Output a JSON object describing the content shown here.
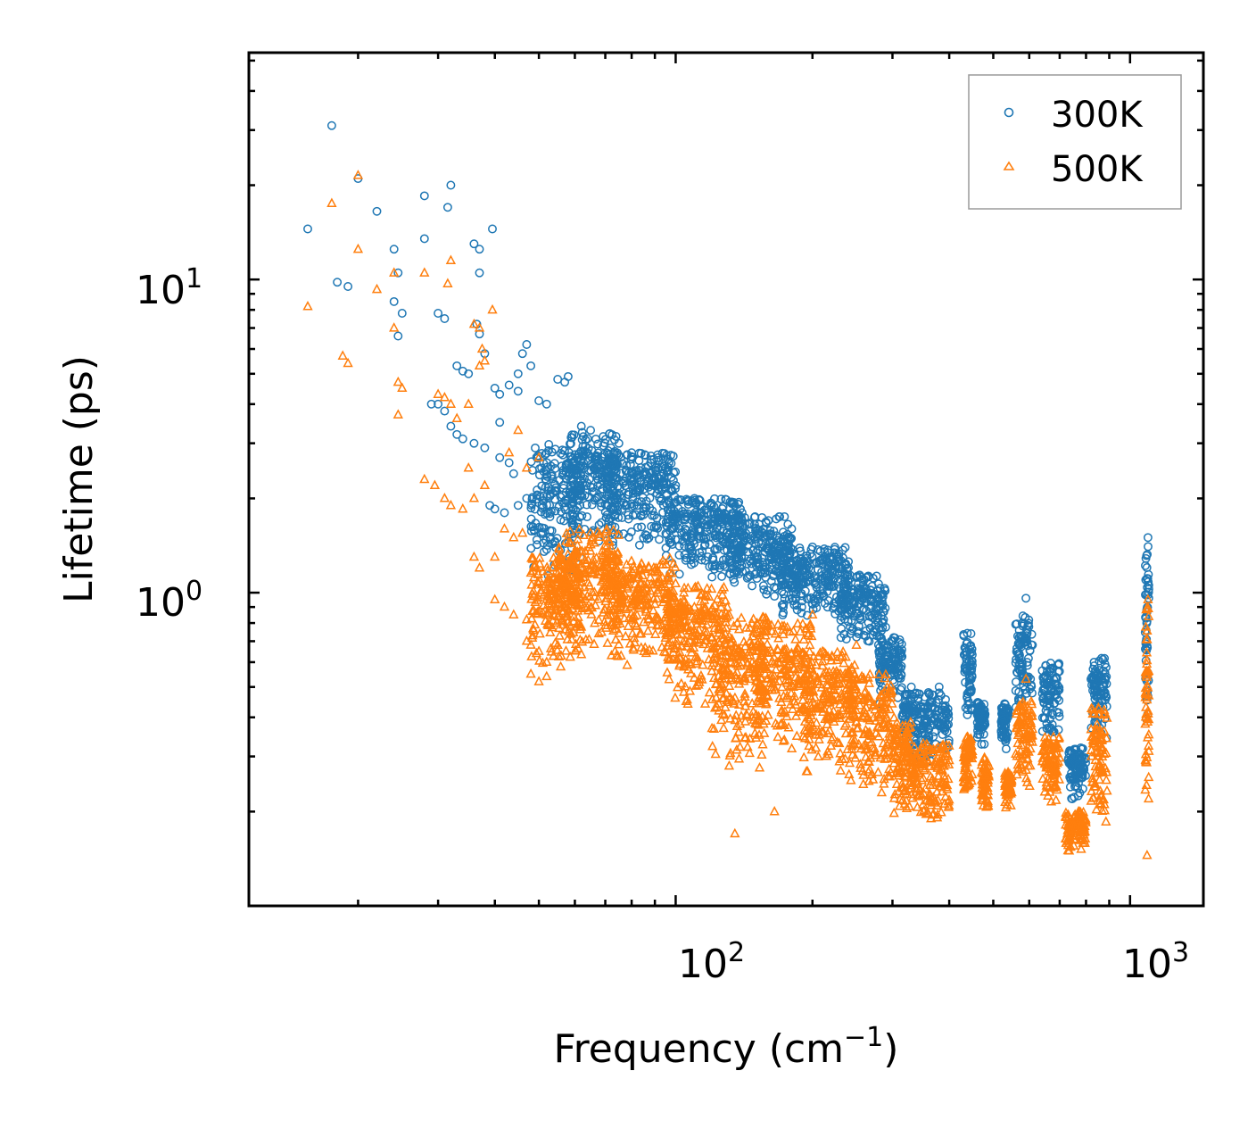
{
  "chart_data": {
    "type": "scatter",
    "xscale": "log",
    "yscale": "log",
    "xlim": [
      11.5,
      1450
    ],
    "ylim": [
      0.1,
      53
    ],
    "xlabel": "Frequency (cm",
    "xlabel_sup": "−1",
    "xlabel_end": ")",
    "ylabel": "Lifetime (ps)",
    "x_ticks": [
      {
        "value": 100,
        "base": "10",
        "exp": "2"
      },
      {
        "value": 1000,
        "base": "10",
        "exp": "3"
      }
    ],
    "y_ticks": [
      {
        "value": 1,
        "base": "10",
        "exp": "0"
      },
      {
        "value": 10,
        "base": "10",
        "exp": "1"
      }
    ],
    "legend": {
      "placement": "top-right"
    },
    "series": [
      {
        "name": "300K",
        "marker": "circle",
        "color": "#1f77b4",
        "points": [
          [
            15.5,
            14.5
          ],
          [
            17.5,
            31
          ],
          [
            18,
            9.8
          ],
          [
            19,
            9.5
          ],
          [
            20,
            21
          ],
          [
            22,
            16.5
          ],
          [
            24,
            12.5
          ],
          [
            24.5,
            10.5
          ],
          [
            24,
            8.5
          ],
          [
            25,
            7.8
          ],
          [
            24.5,
            6.6
          ],
          [
            28,
            18.5
          ],
          [
            28,
            13.5
          ],
          [
            30,
            7.8
          ],
          [
            31,
            7.5
          ],
          [
            31.5,
            17
          ],
          [
            32,
            20
          ],
          [
            33,
            5.3
          ],
          [
            34,
            5.1
          ],
          [
            35,
            5.0
          ],
          [
            36,
            13
          ],
          [
            37,
            12.5
          ],
          [
            37,
            10.5
          ],
          [
            36.5,
            7.2
          ],
          [
            37,
            6.7
          ],
          [
            38,
            5.8
          ],
          [
            39.5,
            14.5
          ],
          [
            40,
            4.5
          ],
          [
            41,
            4.3
          ],
          [
            41,
            3.5
          ],
          [
            43,
            4.6
          ],
          [
            45,
            4.4
          ],
          [
            45,
            5.0
          ],
          [
            46,
            5.8
          ],
          [
            47,
            6.2
          ],
          [
            48,
            5.3
          ],
          [
            50,
            4.1
          ],
          [
            52,
            4.0
          ],
          [
            55,
            4.8
          ],
          [
            57,
            4.7
          ],
          [
            58,
            4.9
          ],
          [
            29,
            4.0
          ],
          [
            30,
            4.0
          ],
          [
            31,
            3.8
          ],
          [
            32,
            3.4
          ],
          [
            33,
            3.2
          ],
          [
            34,
            3.1
          ],
          [
            36,
            3.0
          ],
          [
            38,
            2.9
          ],
          [
            41,
            2.7
          ],
          [
            43,
            2.6
          ],
          [
            44,
            2.4
          ],
          [
            39,
            1.9
          ],
          [
            40,
            1.85
          ],
          [
            42,
            1.8
          ],
          [
            45,
            1.9
          ],
          [
            47,
            2.0
          ],
          [
            62,
            3.4
          ],
          [
            65,
            3.3
          ],
          [
            72,
            2.9
          ],
          [
            75,
            3.0
          ],
          [
            80,
            2.8
          ],
          [
            88,
            2.6
          ],
          [
            95,
            2.5
          ],
          [
            100,
            2.2
          ],
          [
            110,
            2.0
          ],
          [
            120,
            1.9
          ],
          [
            140,
            1.8
          ],
          [
            160,
            1.7
          ],
          [
            180,
            1.6
          ],
          [
            200,
            1.4
          ],
          [
            220,
            1.3
          ],
          [
            240,
            1.2
          ],
          [
            260,
            1.1
          ],
          [
            285,
            0.8
          ],
          [
            300,
            0.7
          ],
          [
            330,
            0.5
          ],
          [
            360,
            0.48
          ],
          [
            380,
            0.5
          ],
          [
            590,
            0.96
          ],
          [
            1095,
            1.5
          ]
        ],
        "bands": [
          {
            "x": [
              48,
              62
            ],
            "y": [
              0.9,
              3.0
            ]
          },
          {
            "x": [
              58,
              75
            ],
            "y": [
              1.2,
              3.3
            ]
          },
          {
            "x": [
              70,
              100
            ],
            "y": [
              1.25,
              2.8
            ]
          },
          {
            "x": [
              95,
              140
            ],
            "y": [
              1.0,
              2.0
            ]
          },
          {
            "x": [
              130,
              180
            ],
            "y": [
              0.85,
              1.75
            ]
          },
          {
            "x": [
              170,
              240
            ],
            "y": [
              0.75,
              1.4
            ]
          },
          {
            "x": [
              230,
              290
            ],
            "y": [
              0.6,
              1.15
            ]
          },
          {
            "x": [
              280,
              315
            ],
            "y": [
              0.4,
              0.72
            ]
          },
          {
            "x": [
              315,
              400
            ],
            "y": [
              0.26,
              0.48
            ]
          },
          {
            "x": [
              430,
              450
            ],
            "y": [
              0.35,
              0.75
            ]
          },
          {
            "x": [
              460,
              480
            ],
            "y": [
              0.3,
              0.45
            ]
          },
          {
            "x": [
              520,
              540
            ],
            "y": [
              0.3,
              0.45
            ]
          },
          {
            "x": [
              560,
              610
            ],
            "y": [
              0.35,
              0.85
            ]
          },
          {
            "x": [
              640,
              700
            ],
            "y": [
              0.3,
              0.6
            ]
          },
          {
            "x": [
              730,
              800
            ],
            "y": [
              0.2,
              0.32
            ]
          },
          {
            "x": [
              820,
              890
            ],
            "y": [
              0.3,
              0.62
            ]
          },
          {
            "x": [
              1080,
              1100
            ],
            "y": [
              0.3,
              1.45
            ]
          }
        ]
      },
      {
        "name": "500K",
        "marker": "triangle",
        "color": "#ff7f0e",
        "points": [
          [
            15.5,
            8.2
          ],
          [
            17.5,
            17.5
          ],
          [
            18.5,
            5.7
          ],
          [
            19,
            5.4
          ],
          [
            20,
            21.5
          ],
          [
            20,
            12.5
          ],
          [
            22,
            9.3
          ],
          [
            24,
            10.5
          ],
          [
            24,
            7.0
          ],
          [
            24.5,
            4.7
          ],
          [
            25,
            4.5
          ],
          [
            24.5,
            3.7
          ],
          [
            28,
            10.5
          ],
          [
            31.5,
            9.7
          ],
          [
            32,
            11.5
          ],
          [
            30,
            4.3
          ],
          [
            31,
            4.2
          ],
          [
            32,
            4.0
          ],
          [
            33,
            3.6
          ],
          [
            35,
            4.0
          ],
          [
            36,
            7.2
          ],
          [
            37,
            7.0
          ],
          [
            37.5,
            6.0
          ],
          [
            39.5,
            8.0
          ],
          [
            38,
            5.5
          ],
          [
            37,
            5.3
          ],
          [
            28,
            2.3
          ],
          [
            29.5,
            2.2
          ],
          [
            31,
            2.0
          ],
          [
            32,
            1.9
          ],
          [
            34,
            1.85
          ],
          [
            36,
            2.0
          ],
          [
            35,
            2.5
          ],
          [
            38,
            2.2
          ],
          [
            36,
            1.3
          ],
          [
            37,
            1.2
          ],
          [
            40,
            1.3
          ],
          [
            42,
            1.6
          ],
          [
            44,
            1.5
          ],
          [
            46,
            1.55
          ],
          [
            40,
            0.95
          ],
          [
            42,
            0.9
          ],
          [
            44,
            0.85
          ],
          [
            47,
            0.82
          ],
          [
            47,
            0.7
          ],
          [
            50,
            0.65
          ],
          [
            52,
            0.6
          ],
          [
            55,
            0.68
          ],
          [
            48,
            0.55
          ],
          [
            50,
            0.52
          ],
          [
            52,
            0.54
          ],
          [
            43,
            2.8
          ],
          [
            45,
            3.3
          ],
          [
            47,
            2.5
          ],
          [
            50,
            2.7
          ],
          [
            200,
            0.85
          ],
          [
            250,
            0.68
          ],
          [
            590,
            0.53
          ],
          [
            1095,
            0.95
          ],
          [
            135,
            0.17
          ],
          [
            165,
            0.2
          ],
          [
            1090,
            0.145
          ]
        ],
        "bands": [
          {
            "x": [
              48,
              62
            ],
            "y": [
              0.5,
              1.3
            ]
          },
          {
            "x": [
              55,
              75
            ],
            "y": [
              0.55,
              1.6
            ]
          },
          {
            "x": [
              70,
              100
            ],
            "y": [
              0.5,
              1.3
            ]
          },
          {
            "x": [
              95,
              130
            ],
            "y": [
              0.38,
              1.05
            ]
          },
          {
            "x": [
              120,
              160
            ],
            "y": [
              0.22,
              0.85
            ]
          },
          {
            "x": [
              150,
              200
            ],
            "y": [
              0.25,
              0.8
            ]
          },
          {
            "x": [
              190,
              250
            ],
            "y": [
              0.22,
              0.65
            ]
          },
          {
            "x": [
              240,
              300
            ],
            "y": [
              0.2,
              0.55
            ]
          },
          {
            "x": [
              300,
              330
            ],
            "y": [
              0.17,
              0.4
            ]
          },
          {
            "x": [
              330,
              400
            ],
            "y": [
              0.16,
              0.33
            ]
          },
          {
            "x": [
              430,
              450
            ],
            "y": [
              0.21,
              0.35
            ]
          },
          {
            "x": [
              470,
              490
            ],
            "y": [
              0.18,
              0.3
            ]
          },
          {
            "x": [
              530,
              550
            ],
            "y": [
              0.19,
              0.27
            ]
          },
          {
            "x": [
              560,
              610
            ],
            "y": [
              0.21,
              0.45
            ]
          },
          {
            "x": [
              640,
              700
            ],
            "y": [
              0.19,
              0.35
            ]
          },
          {
            "x": [
              720,
              800
            ],
            "y": [
              0.14,
              0.2
            ]
          },
          {
            "x": [
              820,
              890
            ],
            "y": [
              0.15,
              0.43
            ]
          },
          {
            "x": [
              1080,
              1100
            ],
            "y": [
              0.15,
              0.95
            ]
          }
        ]
      }
    ]
  }
}
